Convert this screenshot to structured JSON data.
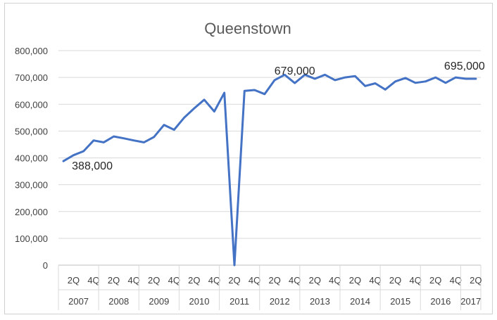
{
  "chart_data": {
    "type": "line",
    "title": "Queenstown",
    "xlabel": "",
    "ylabel": "",
    "ylim": [
      0,
      800000
    ],
    "y_ticks": [
      "0",
      "100,000",
      "200,000",
      "300,000",
      "400,000",
      "500,000",
      "600,000",
      "700,000",
      "800,000"
    ],
    "grid": true,
    "legend": "none",
    "line_color": "#4472c4",
    "quarter_ticks": [
      "2Q",
      "4Q",
      "2Q",
      "4Q",
      "2Q",
      "4Q",
      "2Q",
      "4Q",
      "2Q",
      "4Q",
      "2Q",
      "4Q",
      "2Q",
      "4Q",
      "2Q",
      "4Q",
      "2Q",
      "4Q",
      "2Q",
      "4Q",
      "2Q"
    ],
    "years": [
      "2007",
      "2008",
      "2009",
      "2010",
      "2011",
      "2012",
      "2013",
      "2014",
      "2015",
      "2016",
      "2017"
    ],
    "year_quarter_counts": [
      4,
      4,
      4,
      4,
      4,
      4,
      4,
      4,
      4,
      4,
      2
    ],
    "x": [
      "1Q 2007",
      "2Q 2007",
      "3Q 2007",
      "4Q 2007",
      "1Q 2008",
      "2Q 2008",
      "3Q 2008",
      "4Q 2008",
      "1Q 2009",
      "2Q 2009",
      "3Q 2009",
      "4Q 2009",
      "1Q 2010",
      "2Q 2010",
      "3Q 2010",
      "4Q 2010",
      "1Q 2011",
      "2Q 2011",
      "3Q 2011",
      "4Q 2011",
      "1Q 2012",
      "2Q 2012",
      "3Q 2012",
      "4Q 2012",
      "1Q 2013",
      "2Q 2013",
      "3Q 2013",
      "4Q 2013",
      "1Q 2014",
      "2Q 2014",
      "3Q 2014",
      "4Q 2014",
      "1Q 2015",
      "2Q 2015",
      "3Q 2015",
      "4Q 2015",
      "1Q 2016",
      "2Q 2016",
      "3Q 2016",
      "4Q 2016",
      "1Q 2017",
      "2Q 2017"
    ],
    "series": [
      {
        "values": [
          388000,
          410000,
          425000,
          465000,
          458000,
          480000,
          473000,
          465000,
          458000,
          478000,
          523000,
          505000,
          550000,
          585000,
          617000,
          573000,
          643000,
          0,
          650000,
          653000,
          638000,
          690000,
          710000,
          679000,
          710000,
          695000,
          710000,
          690000,
          700000,
          705000,
          668000,
          678000,
          655000,
          685000,
          698000,
          680000,
          685000,
          700000,
          680000,
          700000,
          695000,
          695000
        ]
      }
    ],
    "annotations": [
      {
        "text": "388,000",
        "x": "1Q 2007"
      },
      {
        "text": "679,000",
        "x": "4Q 2012"
      },
      {
        "text": "695,000",
        "x": "2Q 2017"
      }
    ]
  }
}
